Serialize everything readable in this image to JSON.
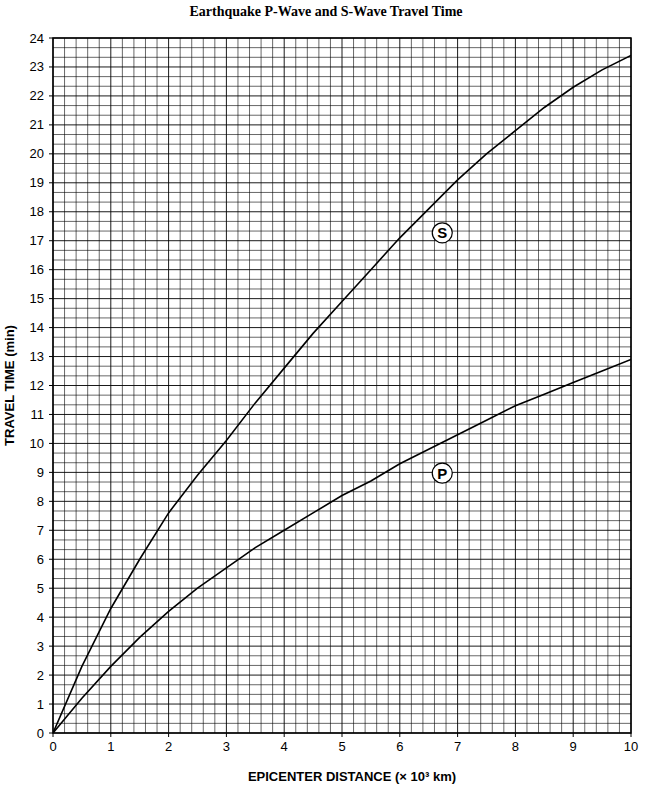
{
  "chart_data": {
    "type": "line",
    "title": "Earthquake P-Wave and S-Wave Travel Time",
    "x_label": "EPICENTER DISTANCE (× 10³ km)",
    "y_label": "TRAVEL TIME (min)",
    "x": [
      0,
      0.5,
      1,
      1.5,
      2,
      2.5,
      3,
      3.5,
      4,
      4.5,
      5,
      5.5,
      6,
      6.5,
      7,
      7.5,
      8,
      8.5,
      9,
      9.5,
      10
    ],
    "series": [
      {
        "name": "S",
        "color": "#000000",
        "values": [
          0,
          2.3,
          4.3,
          6.0,
          7.6,
          8.9,
          10.1,
          11.4,
          12.6,
          13.8,
          14.9,
          16.0,
          17.1,
          18.1,
          19.1,
          20.0,
          20.8,
          21.6,
          22.3,
          22.9,
          23.4
        ]
      },
      {
        "name": "P",
        "color": "#000000",
        "values": [
          0,
          1.2,
          2.3,
          3.3,
          4.2,
          5.0,
          5.7,
          6.4,
          7.0,
          7.6,
          8.2,
          8.7,
          9.3,
          9.8,
          10.3,
          10.8,
          11.3,
          11.7,
          12.1,
          12.5,
          12.9
        ]
      }
    ],
    "xlim": [
      0,
      10
    ],
    "xticks": [
      0,
      1,
      2,
      3,
      4,
      5,
      6,
      7,
      8,
      9,
      10
    ],
    "ylim": [
      0,
      24
    ],
    "yticks": [
      0,
      1,
      2,
      3,
      4,
      5,
      6,
      7,
      8,
      9,
      10,
      11,
      12,
      13,
      14,
      15,
      16,
      17,
      18,
      19,
      20,
      21,
      22,
      23,
      24
    ],
    "grid": true
  }
}
